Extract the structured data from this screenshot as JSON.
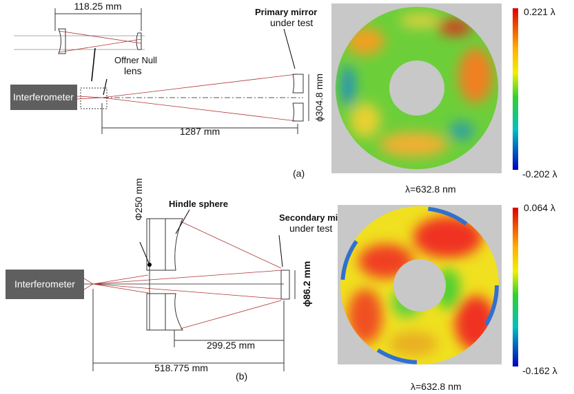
{
  "panels": [
    {
      "label": "(a)",
      "inset_dimension": "118.25 mm",
      "source": "Interferometer",
      "null_lens": [
        "Offner Null",
        "lens"
      ],
      "mirror": [
        "Primary mirror",
        "under test"
      ],
      "mirror_diameter": "ϕ304.8 mm",
      "distance": "1287 mm",
      "map": {
        "max": "0.221 λ",
        "min": "-0.202 λ",
        "wavelength": "λ=632.8 nm"
      }
    },
    {
      "label": "(b)",
      "sphere": "Hindle sphere",
      "sphere_diameter": "Φ250 mm",
      "source": "Interferometer",
      "mirror": [
        "Secondary mirror",
        "under test"
      ],
      "mirror_diameter": "ϕ86.2 mm",
      "distance_sphere": "299.25 mm",
      "distance_total": "518.775 mm",
      "map": {
        "max": "0.064 λ",
        "min": "-0.162 λ",
        "wavelength": "λ=632.8 nm"
      }
    }
  ]
}
